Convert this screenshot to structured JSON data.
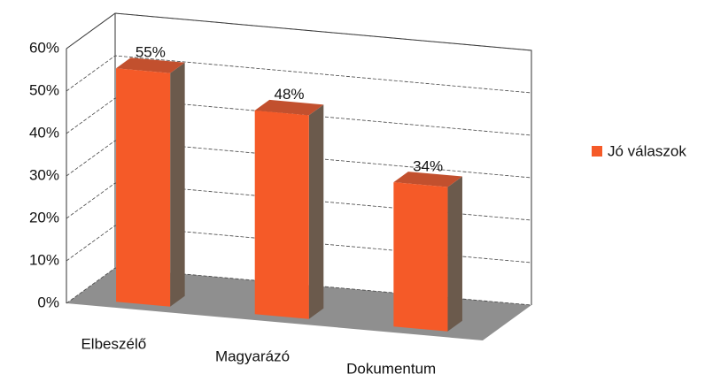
{
  "chart_data": {
    "type": "bar3d",
    "categories": [
      "Elbeszélő",
      "Magyarázó",
      "Dokumentum"
    ],
    "series": [
      {
        "name": "Jó válaszok",
        "color": "#f55a28",
        "values": [
          55,
          48,
          34
        ],
        "value_labels": [
          "55%",
          "48%",
          "34%"
        ]
      }
    ],
    "ylim": [
      0,
      60
    ],
    "yticks": [
      {
        "value": 0,
        "label": "0%"
      },
      {
        "value": 10,
        "label": "10%"
      },
      {
        "value": 20,
        "label": "20%"
      },
      {
        "value": 30,
        "label": "30%"
      },
      {
        "value": 40,
        "label": "40%"
      },
      {
        "value": 50,
        "label": "50%"
      },
      {
        "value": 60,
        "label": "60%"
      }
    ],
    "grid": true,
    "legend": "right"
  }
}
